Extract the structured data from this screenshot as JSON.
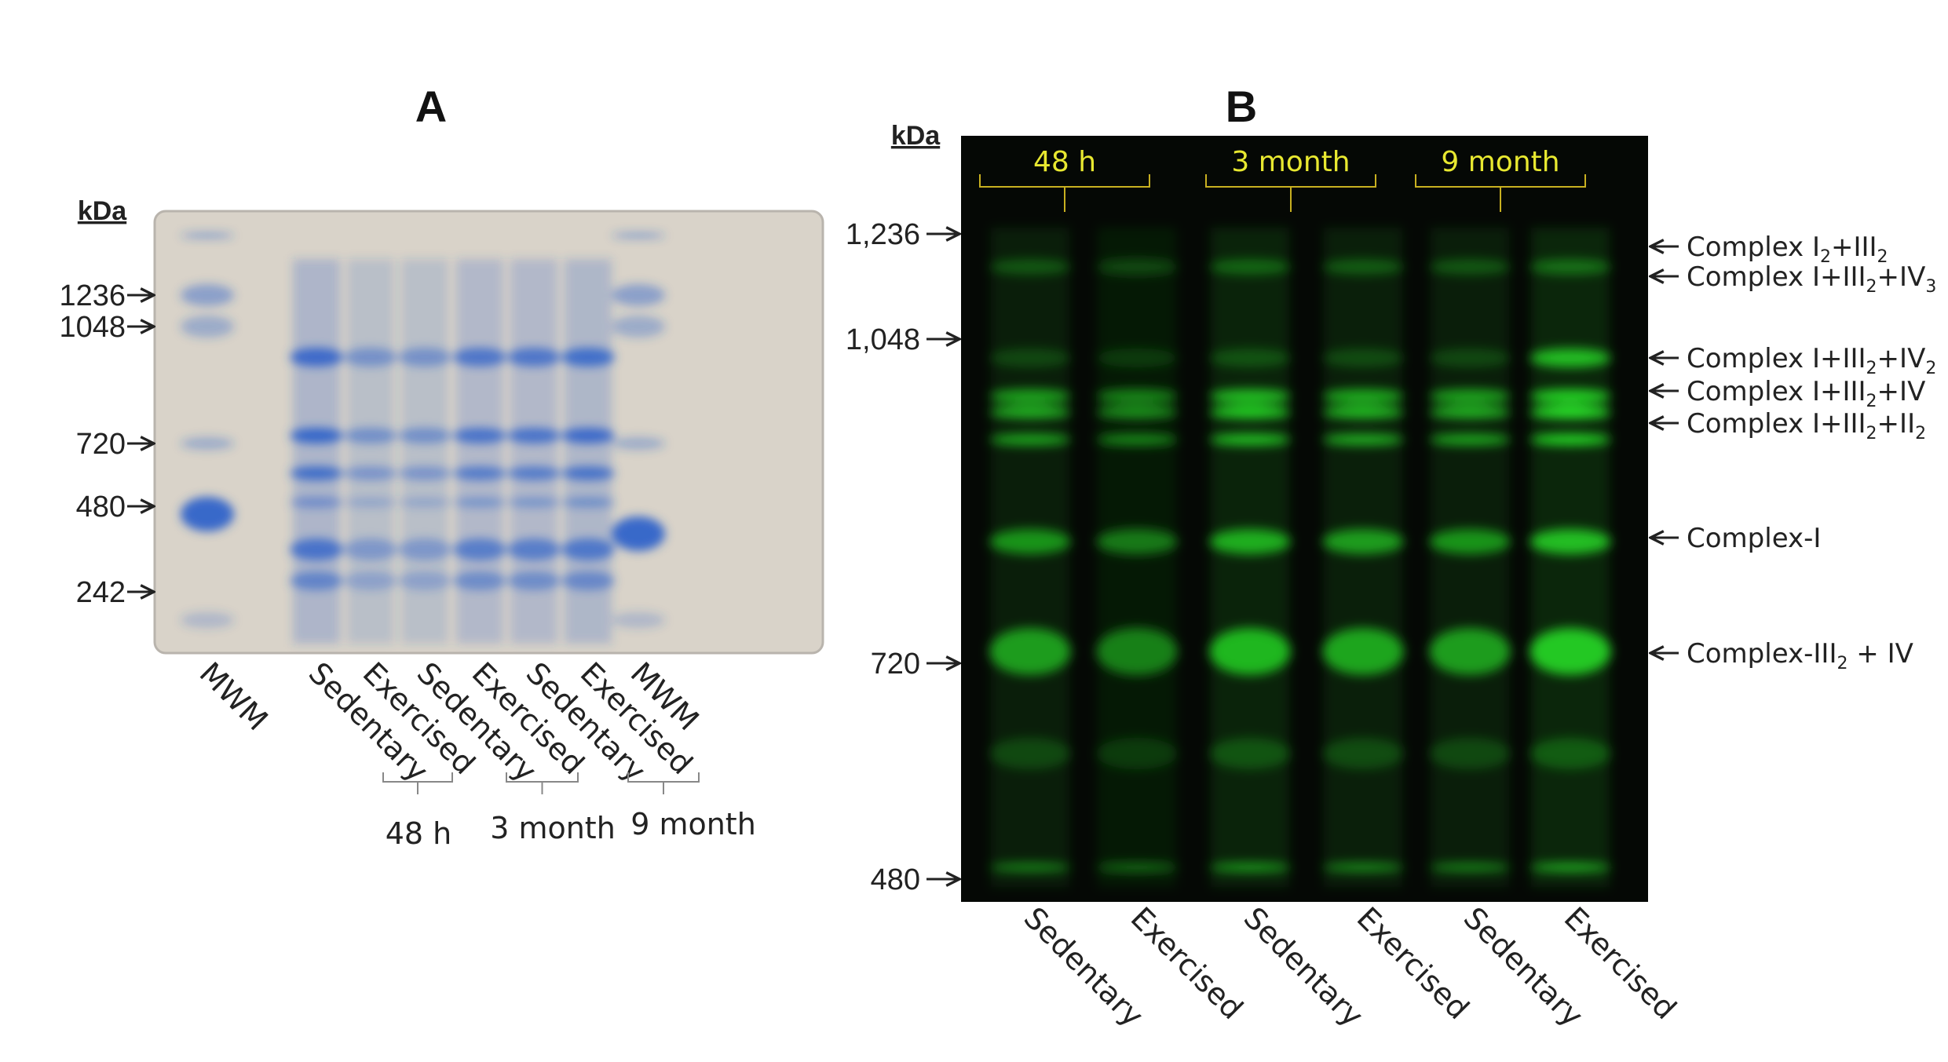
{
  "panel_a": {
    "title": "A",
    "unit": "kDa",
    "markers": [
      "1236",
      "1048",
      "720",
      "480",
      "242"
    ],
    "lanes": [
      "MWM",
      "Sedentary",
      "Exercised",
      "Sedentary",
      "Exercised",
      "Sedentary",
      "Exercised",
      "MWM"
    ],
    "groups": [
      "48 h",
      "3 month",
      "9 month"
    ],
    "colors": {
      "gel": "#d9d3c9",
      "stain": "#2f62c9"
    }
  },
  "panel_b": {
    "title": "B",
    "unit": "kDa",
    "markers": [
      "1,236",
      "1,048",
      "720",
      "480"
    ],
    "groups": [
      "48 h",
      "3 month",
      "9 month"
    ],
    "lanes": [
      "Sedentary",
      "Exercised",
      "Sedentary",
      "Exercised",
      "Sedentary",
      "Exercised"
    ],
    "complexes": [
      [
        {
          "t": "Complex I"
        },
        {
          "t": "2",
          "sub": true
        },
        {
          "t": "+III"
        },
        {
          "t": "2",
          "sub": true
        }
      ],
      [
        {
          "t": "Complex I+III"
        },
        {
          "t": "2",
          "sub": true
        },
        {
          "t": "+IV"
        },
        {
          "t": "3",
          "sub": true
        }
      ],
      [
        {
          "t": "Complex I+III"
        },
        {
          "t": "2",
          "sub": true
        },
        {
          "t": "+IV"
        },
        {
          "t": "2",
          "sub": true
        }
      ],
      [
        {
          "t": "Complex I+III"
        },
        {
          "t": "2",
          "sub": true
        },
        {
          "t": "+IV"
        }
      ],
      [
        {
          "t": "Complex I+III"
        },
        {
          "t": "2",
          "sub": true
        },
        {
          "t": "+II"
        },
        {
          "t": "2",
          "sub": true
        }
      ],
      [
        {
          "t": "Complex-I"
        }
      ],
      [
        {
          "t": "Complex-III"
        },
        {
          "t": "2",
          "sub": true
        },
        {
          "t": " + IV"
        }
      ]
    ],
    "colors": {
      "background": "#050805",
      "signal": "#2cff2c",
      "group_label": "#e8e830"
    }
  }
}
